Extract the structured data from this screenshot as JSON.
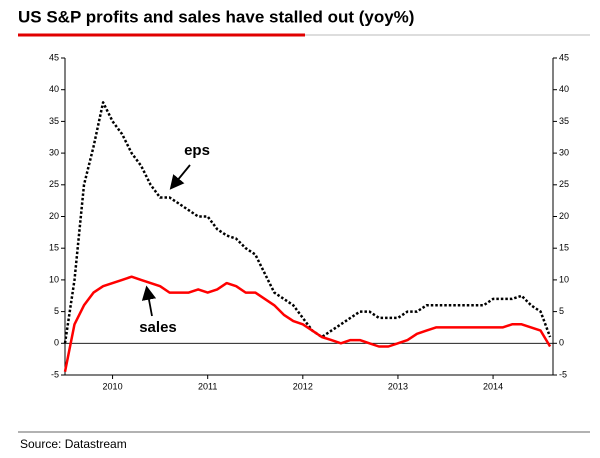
{
  "chart_data": {
    "type": "line",
    "title": "US S&P profits and sales have stalled out (yoy%)",
    "source": "Source: Datastream",
    "x": [
      2009.5,
      2009.6,
      2009.7,
      2009.8,
      2009.9,
      2010.0,
      2010.1,
      2010.2,
      2010.3,
      2010.4,
      2010.5,
      2010.6,
      2010.7,
      2010.8,
      2010.9,
      2011.0,
      2011.1,
      2011.2,
      2011.3,
      2011.4,
      2011.5,
      2011.6,
      2011.7,
      2011.8,
      2011.9,
      2012.0,
      2012.1,
      2012.2,
      2012.3,
      2012.4,
      2012.5,
      2012.6,
      2012.7,
      2012.8,
      2012.9,
      2013.0,
      2013.1,
      2013.2,
      2013.3,
      2013.4,
      2013.5,
      2013.6,
      2013.7,
      2013.8,
      2013.9,
      2014.0,
      2014.1,
      2014.2,
      2014.3,
      2014.4,
      2014.5,
      2014.6
    ],
    "series": [
      {
        "name": "eps",
        "color": "#000000",
        "line_style": "dotted",
        "values": [
          0,
          10,
          25,
          31,
          38,
          35,
          33,
          30,
          28,
          25,
          23,
          23,
          22,
          21,
          20,
          20,
          18,
          17,
          16.5,
          15,
          14,
          11,
          8,
          7,
          6,
          4,
          2,
          1,
          2,
          3,
          4,
          5,
          5,
          4,
          4,
          4,
          5,
          5,
          6,
          6,
          6,
          6,
          6,
          6,
          6,
          7,
          7,
          7,
          7.5,
          6,
          5,
          1
        ]
      },
      {
        "name": "sales",
        "color": "#ff0000",
        "line_style": "solid",
        "values": [
          -4.5,
          3,
          6,
          8,
          9,
          9.5,
          10,
          10.5,
          10,
          9.5,
          9,
          8,
          8,
          8,
          8.5,
          8,
          8.5,
          9.5,
          9,
          8,
          8,
          7,
          6,
          4.5,
          3.5,
          3,
          2,
          1,
          0.5,
          0,
          0.5,
          0.5,
          0,
          -0.5,
          -0.5,
          0,
          0.5,
          1.5,
          2,
          2.5,
          2.5,
          2.5,
          2.5,
          2.5,
          2.5,
          2.5,
          2.5,
          3,
          3,
          2.5,
          2,
          -0.5
        ]
      }
    ],
    "xlim": [
      2009.5,
      2014.63
    ],
    "xticks": [
      {
        "value": 2010,
        "label": "2010"
      },
      {
        "value": 2011,
        "label": "2011"
      },
      {
        "value": 2012,
        "label": "2012"
      },
      {
        "value": 2013,
        "label": "2013"
      },
      {
        "value": 2014,
        "label": "2014"
      }
    ],
    "ylim": [
      -5,
      45
    ],
    "yticks": [
      -5,
      0,
      5,
      10,
      15,
      20,
      25,
      30,
      35,
      40,
      45
    ],
    "y2lim": [
      -5,
      45
    ],
    "y2ticks": [
      -5,
      0,
      5,
      10,
      15,
      20,
      25,
      30,
      35,
      40,
      45
    ],
    "zero_line": true
  }
}
